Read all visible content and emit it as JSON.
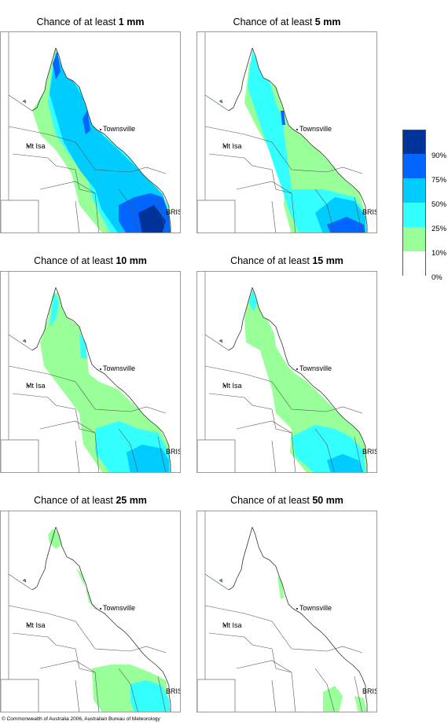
{
  "panels": [
    {
      "title_prefix": "Chance of at least ",
      "title_bold": "1 mm"
    },
    {
      "title_prefix": "Chance of at least ",
      "title_bold": "5 mm"
    },
    {
      "title_prefix": "Chance of at least ",
      "title_bold": "10 mm"
    },
    {
      "title_prefix": "Chance of at least ",
      "title_bold": "15 mm"
    },
    {
      "title_prefix": "Chance of at least ",
      "title_bold": "25 mm"
    },
    {
      "title_prefix": "Chance of at least ",
      "title_bold": "50 mm"
    }
  ],
  "places": {
    "townsville": "Townsville",
    "mt_isa": "Mt Isa",
    "brisbane": "BRIS"
  },
  "legend": {
    "labels": [
      "90%",
      "75%",
      "50%",
      "25%",
      "10%",
      "0%"
    ],
    "colors": [
      "#003399",
      "#0066ff",
      "#00ccff",
      "#33ffff",
      "#99ff99",
      "#ffffff"
    ]
  },
  "copyright": "© Commonwealth of Australia 2006, Australian Bureau of Meteorology"
}
